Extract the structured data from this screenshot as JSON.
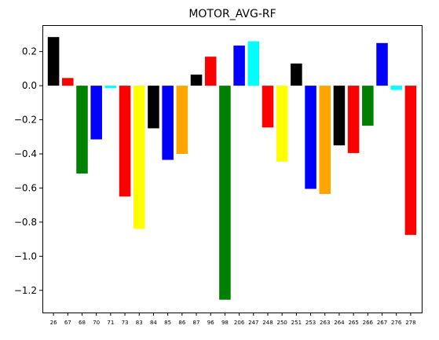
{
  "chart_data": {
    "type": "bar",
    "title": "MOTOR_AVG-RF",
    "xlabel": "",
    "ylabel": "",
    "ylim": [
      -1.33,
      0.355
    ],
    "yticks": [
      0.2,
      0.0,
      -0.2,
      -0.4,
      -0.6,
      -0.8,
      -1.0,
      -1.2
    ],
    "ytick_labels": [
      "0.2",
      "0.0",
      "−0.2",
      "−0.4",
      "−0.6",
      "−0.8",
      "−1.0",
      "−1.2"
    ],
    "grid": false,
    "categories": [
      "26",
      "67",
      "68",
      "70",
      "71",
      "73",
      "83",
      "84",
      "85",
      "86",
      "87",
      "96",
      "98",
      "206",
      "247",
      "248",
      "250",
      "251",
      "253",
      "263",
      "264",
      "265",
      "266",
      "267",
      "276",
      "278"
    ],
    "values": [
      0.285,
      0.045,
      -0.515,
      -0.315,
      -0.015,
      -0.65,
      -0.84,
      -0.25,
      -0.435,
      -0.4,
      0.065,
      0.17,
      -1.255,
      0.235,
      0.26,
      -0.245,
      -0.445,
      0.13,
      -0.605,
      -0.635,
      -0.35,
      -0.395,
      -0.235,
      0.25,
      -0.025,
      -0.875
    ],
    "colors": [
      "#000000",
      "#ff0000",
      "#008000",
      "#0000ff",
      "#00ffff",
      "#ff0000",
      "#ffff00",
      "#000000",
      "#0000ff",
      "#ffa500",
      "#000000",
      "#ff0000",
      "#008000",
      "#0000ff",
      "#00ffff",
      "#ff0000",
      "#ffff00",
      "#000000",
      "#0000ff",
      "#ffa500",
      "#000000",
      "#ff0000",
      "#008000",
      "#0000ff",
      "#00ffff",
      "#ff0000"
    ]
  }
}
